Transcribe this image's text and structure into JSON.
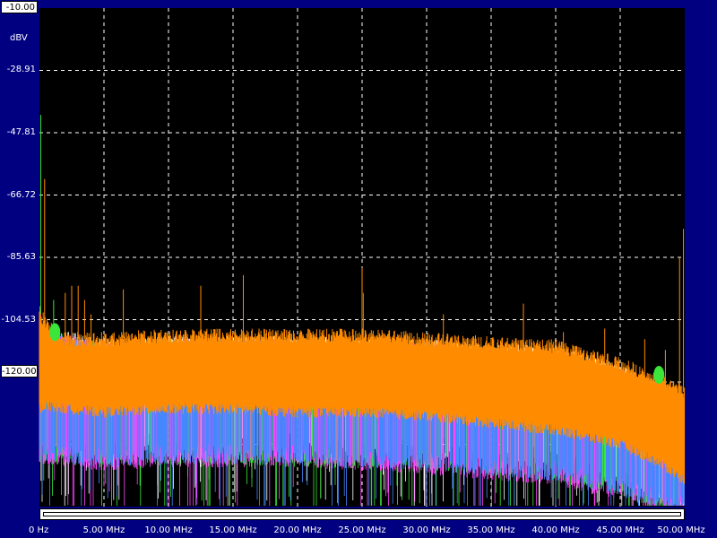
{
  "chart_data": {
    "type": "line",
    "unit_label": "dBV",
    "y_ticks": [
      "-10.00",
      "-28.91",
      "-47.81",
      "-66.72",
      "-85.63",
      "-104.53",
      "-120.00"
    ],
    "x_ticks": [
      "0 Hz",
      "5.00 MHz",
      "10.00 MHz",
      "15.00 MHz",
      "20.00 MHz",
      "25.00 MHz",
      "30.00 MHz",
      "35.00 MHz",
      "40.00 MHz",
      "45.00 MHz",
      "50.00 MHz"
    ],
    "xlim_mhz": [
      0,
      50
    ],
    "ylim_dbv": [
      -150,
      -10
    ],
    "grid": true,
    "series": [
      {
        "color": "#ff8c00",
        "x_mhz": [
          0,
          0.5,
          2,
          5,
          10,
          15,
          20,
          25,
          30,
          35,
          40,
          45,
          48,
          50
        ],
        "upper_dbv": [
          -95,
          -99,
          -103,
          -103,
          -102,
          -102,
          -102,
          -102,
          -103,
          -104,
          -105,
          -110,
          -114,
          -118
        ],
        "lower_dbv": [
          -120,
          -119,
          -120,
          -121,
          -120,
          -120,
          -121,
          -121,
          -122,
          -124,
          -126,
          -130,
          -135,
          -140
        ]
      },
      {
        "color": "#ffffff",
        "x_mhz": [
          0,
          5,
          10,
          20,
          30,
          40,
          45,
          50
        ],
        "upper_dbv": [
          -99,
          -103,
          -102,
          -102,
          -103,
          -105,
          -110,
          -118
        ],
        "lower_dbv": [
          -128,
          -129,
          -128,
          -128,
          -130,
          -133,
          -137,
          -145
        ]
      },
      {
        "color": "#39e639",
        "x_mhz": [
          0,
          5,
          10,
          20,
          30,
          40,
          45,
          50
        ],
        "upper_dbv": [
          -100,
          -104,
          -103,
          -103,
          -104,
          -106,
          -111,
          -119
        ],
        "lower_dbv": [
          -132,
          -133,
          -132,
          -133,
          -134,
          -137,
          -141,
          -148
        ]
      },
      {
        "color": "#ff44ff",
        "x_mhz": [
          0,
          5,
          10,
          20,
          30,
          40,
          45,
          50
        ],
        "upper_dbv": [
          -100,
          -104,
          -103,
          -103,
          -104,
          -106,
          -111,
          -119
        ],
        "lower_dbv": [
          -132,
          -134,
          -133,
          -133,
          -135,
          -138,
          -142,
          -148
        ]
      },
      {
        "color": "#4488ff",
        "x_mhz": [
          0,
          5,
          10,
          20,
          30,
          40,
          45,
          50
        ],
        "upper_dbv": [
          -100,
          -104,
          -103,
          -103,
          -104,
          -106,
          -111,
          -119
        ],
        "lower_dbv": [
          -131,
          -133,
          -132,
          -132,
          -134,
          -137,
          -141,
          -147
        ]
      }
    ],
    "spurs": [
      {
        "x_mhz": 0.1,
        "y_dbv": -40,
        "color": "#39e639"
      },
      {
        "x_mhz": 0.4,
        "y_dbv": -58,
        "color": "#ff8c00"
      },
      {
        "x_mhz": 1.1,
        "y_dbv": -92,
        "color": "#39e639"
      },
      {
        "x_mhz": 2.0,
        "y_dbv": -90,
        "color": "#ff8c00"
      },
      {
        "x_mhz": 2.5,
        "y_dbv": -88,
        "color": "#ff8c00"
      },
      {
        "x_mhz": 3.0,
        "y_dbv": -88,
        "color": "#ff8c00"
      },
      {
        "x_mhz": 3.5,
        "y_dbv": -92,
        "color": "#ff8c00"
      },
      {
        "x_mhz": 4.0,
        "y_dbv": -96,
        "color": "#ff8c00"
      },
      {
        "x_mhz": 6.5,
        "y_dbv": -89,
        "color": "#ff8c00"
      },
      {
        "x_mhz": 12.5,
        "y_dbv": -88,
        "color": "#ff8c00"
      },
      {
        "x_mhz": 15.8,
        "y_dbv": -85,
        "color": "#ff8c00"
      },
      {
        "x_mhz": 25.0,
        "y_dbv": -83,
        "color": "#ff8c00"
      },
      {
        "x_mhz": 25.1,
        "y_dbv": -90,
        "color": "#4488ff"
      },
      {
        "x_mhz": 31.3,
        "y_dbv": -96,
        "color": "#ff8c00"
      },
      {
        "x_mhz": 37.5,
        "y_dbv": -93,
        "color": "#ff8c00"
      },
      {
        "x_mhz": 40.6,
        "y_dbv": -101,
        "color": "#ff8c00"
      },
      {
        "x_mhz": 43.8,
        "y_dbv": -100,
        "color": "#ff8c00"
      },
      {
        "x_mhz": 46.9,
        "y_dbv": -103,
        "color": "#ff8c00"
      },
      {
        "x_mhz": 48.5,
        "y_dbv": -106,
        "color": "#ff8c00"
      },
      {
        "x_mhz": 49.6,
        "y_dbv": -80,
        "color": "#ff8c00"
      },
      {
        "x_mhz": 49.9,
        "y_dbv": -72,
        "color": "#ff8c00"
      }
    ],
    "bumps": [
      {
        "x_mhz": 1.2,
        "y_dbv": -101,
        "color": "#39e639"
      },
      {
        "x_mhz": 48.0,
        "y_dbv": -113,
        "color": "#39e639"
      }
    ]
  }
}
